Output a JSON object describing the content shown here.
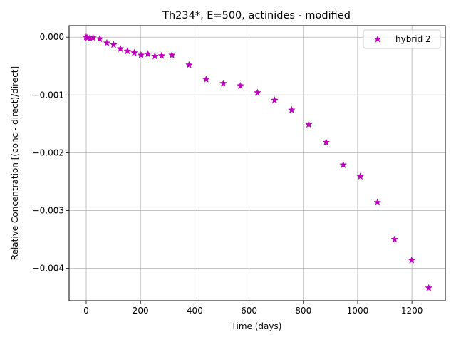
{
  "chart_data": {
    "type": "scatter",
    "title": "Th234*, E=500, actinides - modified",
    "xlabel": "Time (days)",
    "ylabel": "Relative Concentration [(conc - direct)/direct]",
    "xlim": [
      -63,
      1323
    ],
    "ylim": [
      -0.00456,
      0.0002
    ],
    "xticks": [
      0,
      200,
      400,
      600,
      800,
      1000,
      1200
    ],
    "yticks": [
      0.0,
      -0.001,
      -0.002,
      -0.003,
      -0.004
    ],
    "xtick_labels": [
      "0",
      "200",
      "400",
      "600",
      "800",
      "1000",
      "1200"
    ],
    "ytick_labels": [
      "0.000",
      "−0.001",
      "−0.002",
      "−0.003",
      "−0.004"
    ],
    "grid": true,
    "legend_position": "upper right",
    "series": [
      {
        "name": "hybrid 2",
        "color": "#bf00bf",
        "marker": "star",
        "x": [
          0,
          5,
          13,
          25,
          50,
          76,
          101,
          126,
          152,
          177,
          202,
          227,
          253,
          278,
          316,
          379,
          442,
          505,
          568,
          631,
          694,
          757,
          820,
          884,
          947,
          1010,
          1073,
          1136,
          1199,
          1262
        ],
        "y": [
          0.0,
          -1e-05,
          -2e-05,
          -1e-05,
          -3e-05,
          -0.0001,
          -0.00013,
          -0.0002,
          -0.00024,
          -0.00027,
          -0.00031,
          -0.00029,
          -0.00033,
          -0.00032,
          -0.00031,
          -0.00048,
          -0.00073,
          -0.0008,
          -0.00084,
          -0.00096,
          -0.00109,
          -0.00126,
          -0.00151,
          -0.00182,
          -0.00221,
          -0.00241,
          -0.00286,
          -0.0035,
          -0.00386,
          -0.00434
        ]
      }
    ]
  }
}
